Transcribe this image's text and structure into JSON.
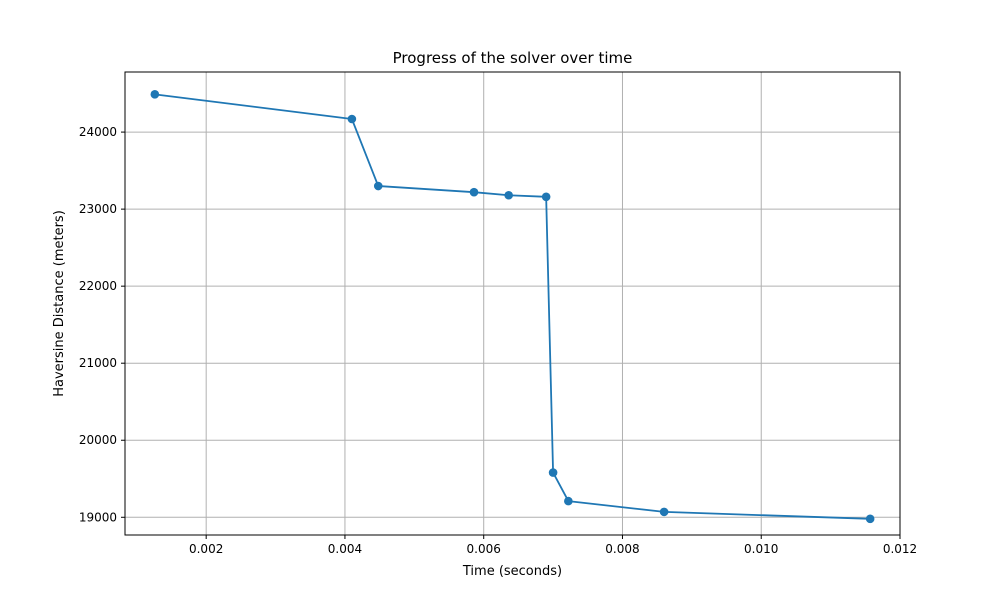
{
  "chart_data": {
    "type": "line",
    "title": "Progress of the solver over time",
    "xlabel": "Time (seconds)",
    "ylabel": "Haversine Distance (meters)",
    "xlim": [
      0.00083,
      0.012
    ],
    "ylim": [
      18770,
      24780
    ],
    "xticks": [
      0.002,
      0.004,
      0.006,
      0.008,
      0.01,
      0.012
    ],
    "xtick_labels": [
      "0.002",
      "0.004",
      "0.006",
      "0.008",
      "0.010",
      "0.012"
    ],
    "yticks": [
      19000,
      20000,
      21000,
      22000,
      23000,
      24000
    ],
    "ytick_labels": [
      "19000",
      "20000",
      "21000",
      "22000",
      "23000",
      "24000"
    ],
    "grid": true,
    "series": [
      {
        "color": "#1f77b4",
        "marker": "circle",
        "x": [
          0.00126,
          0.0041,
          0.00448,
          0.00586,
          0.00636,
          0.0069,
          0.007,
          0.00722,
          0.0086,
          0.01157
        ],
        "y": [
          24490,
          24170,
          23300,
          23220,
          23180,
          23160,
          19580,
          19210,
          19070,
          18980
        ]
      }
    ]
  }
}
